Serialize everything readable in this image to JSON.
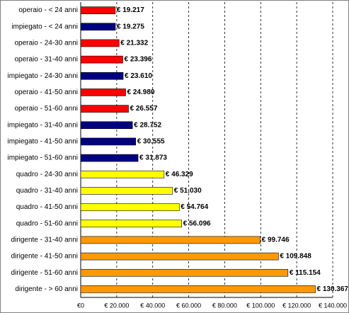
{
  "chart_data": {
    "type": "bar",
    "orientation": "horizontal",
    "categories": [
      "operaio - < 24 anni",
      "impiegato - < 24 anni",
      "operaio - 24-30 anni",
      "operaio - 31-40 anni",
      "impiegato - 24-30 anni",
      "operaio - 41-50 anni",
      "operaio - 51-60 anni",
      "impiegato - 31-40 anni",
      "impiegato - 41-50 anni",
      "impiegato - 51-60 anni",
      "quadro - 24-30 anni",
      "quadro - 31-40 anni",
      "quadro - 41-50 anni",
      "quadro - 51-60 anni",
      "dirigente - 31-40 anni",
      "dirigente - 41-50 anni",
      "dirigente - 51-60 anni",
      "dirigente - > 60 anni"
    ],
    "values": [
      19217,
      19275,
      21332,
      23396,
      23610,
      24980,
      26557,
      28752,
      30555,
      31873,
      46329,
      51030,
      54764,
      56096,
      99746,
      109848,
      115154,
      130367
    ],
    "value_labels": [
      "€ 19.217",
      "€ 19.275",
      "€ 21.332",
      "€ 23.396",
      "€ 23.610",
      "€ 24.980",
      "€ 26.557",
      "€ 28.752",
      "€ 30.555",
      "€ 31.873",
      "€ 46.329",
      "€ 51.030",
      "€ 54.764",
      "€ 56.096",
      "€ 99.746",
      "€ 109.848",
      "€ 115.154",
      "€ 130.367"
    ],
    "colors": [
      "#ff0000",
      "#000080",
      "#ff0000",
      "#ff0000",
      "#000080",
      "#ff0000",
      "#ff0000",
      "#000080",
      "#000080",
      "#000080",
      "#ffff00",
      "#ffff00",
      "#ffff00",
      "#ffff00",
      "#ff9900",
      "#ff9900",
      "#ff9900",
      "#ff9900"
    ],
    "xlim": [
      0,
      140000
    ],
    "xticks": [
      {
        "value": 0,
        "label": "€0"
      },
      {
        "value": 20000,
        "label": "€ 20.000"
      },
      {
        "value": 40000,
        "label": "€ 40.000"
      },
      {
        "value": 60000,
        "label": "€ 60.000"
      },
      {
        "value": 80000,
        "label": "€ 80.000"
      },
      {
        "value": 100000,
        "label": "€ 100.000"
      },
      {
        "value": 120000,
        "label": "€ 120.000"
      },
      {
        "value": 140000,
        "label": "€ 140.000"
      }
    ],
    "grid": true
  }
}
